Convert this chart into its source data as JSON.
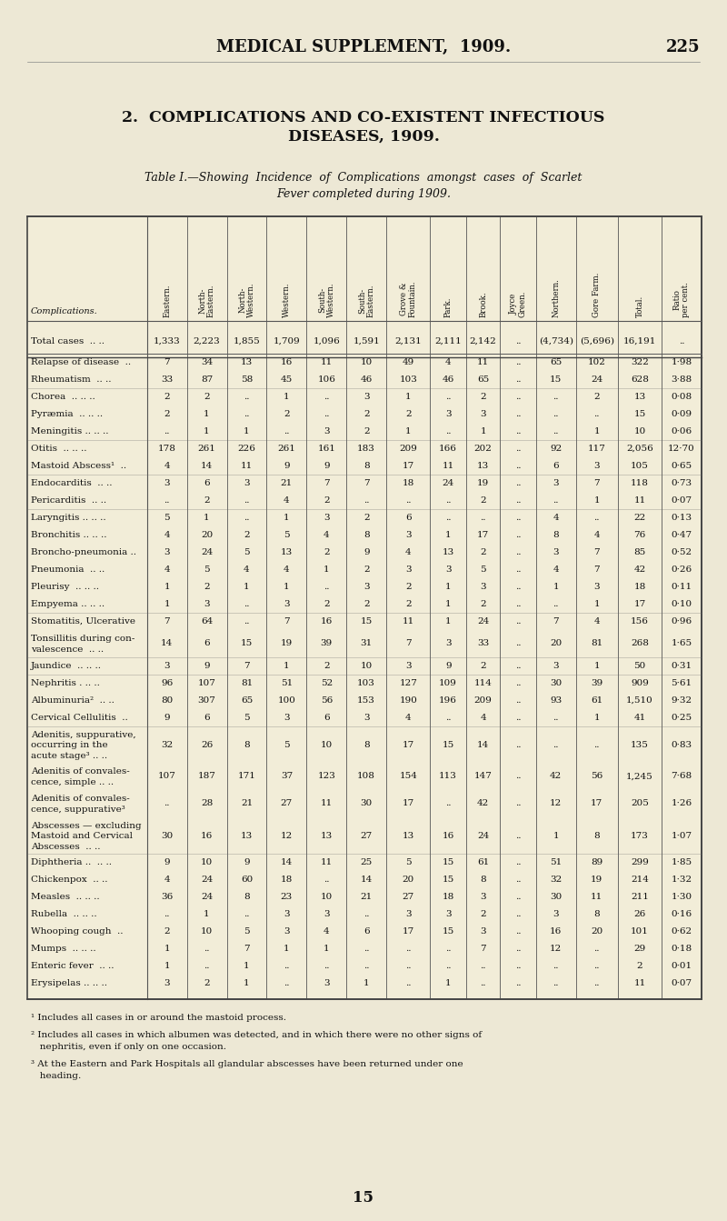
{
  "page_header": "MEDICAL SUPPLEMENT,  1909.",
  "page_number": "225",
  "section_title_line1": "2.  COMPLICATIONS AND CO-EXISTENT INFECTIOUS",
  "section_title_line2": "DISEASES, 1909.",
  "table_caption_line1": "Table I.—Showing  Incidence  of  Complications  amongst  cases  of  Scarlet",
  "table_caption_line2": "Fever completed during 1909.",
  "col_headers": [
    "Complications.",
    "Eastern.",
    "North-\nEastern.",
    "North-\nWestern.",
    "Western.",
    "South-\nWestern.",
    "South-\nEastern.",
    "Grove &\nFountain.",
    "Park.",
    "Brook.",
    "Joyce\nGreen.",
    "Northern.",
    "Gore Farm.",
    "Total.",
    "Ratio\nper cent."
  ],
  "rows": [
    [
      "Total cases  .. ..",
      "1,333",
      "2,223",
      "1,855",
      "1,709",
      "1,096",
      "1,591",
      "2,131",
      "2,111",
      "2,142",
      "..",
      "(4,734)",
      "(5,696)",
      "16,191",
      ".."
    ],
    [
      "Relapse of disease  ..",
      "7",
      "34",
      "13",
      "16",
      "11",
      "10",
      "49",
      "4",
      "11",
      "..",
      "65",
      "102",
      "322",
      "1·98"
    ],
    [
      "Rheumatism  .. ..",
      "33",
      "87",
      "58",
      "45",
      "106",
      "46",
      "103",
      "46",
      "65",
      "..",
      "15",
      "24",
      "628",
      "3·88"
    ],
    [
      "Chorea  .. .. ..",
      "2",
      "2",
      "..",
      "1",
      "..",
      "3",
      "1",
      "..",
      "2",
      "..",
      "..",
      "2",
      "13",
      "0·08"
    ],
    [
      "Pyræmia  .. .. ..",
      "2",
      "1",
      "..",
      "2",
      "..",
      "2",
      "2",
      "3",
      "3",
      "..",
      "..",
      "..",
      "15",
      "0·09"
    ],
    [
      "Meningitis .. .. ..",
      "..",
      "1",
      "1",
      "..",
      "3",
      "2",
      "1",
      "..",
      "1",
      "..",
      "..",
      "1",
      "10",
      "0·06"
    ],
    [
      "Otitis  .. .. ..",
      "178",
      "261",
      "226",
      "261",
      "161",
      "183",
      "209",
      "166",
      "202",
      "..",
      "92",
      "117",
      "2,056",
      "12·70"
    ],
    [
      "Mastoid Abscess¹  ..",
      "4",
      "14",
      "11",
      "9",
      "9",
      "8",
      "17",
      "11",
      "13",
      "..",
      "6",
      "3",
      "105",
      "0·65"
    ],
    [
      "Endocarditis  .. ..",
      "3",
      "6",
      "3",
      "21",
      "7",
      "7",
      "18",
      "24",
      "19",
      "..",
      "3",
      "7",
      "118",
      "0·73"
    ],
    [
      "Pericarditis  .. ..",
      "..",
      "2",
      "..",
      "4",
      "2",
      "..",
      "..",
      "..",
      "2",
      "..",
      "..",
      "1",
      "11",
      "0·07"
    ],
    [
      "Laryngitis .. .. ..",
      "5",
      "1",
      "..",
      "1",
      "3",
      "2",
      "6",
      "..",
      "..",
      "..",
      "4",
      "..",
      "22",
      "0·13"
    ],
    [
      "Bronchitis .. .. ..",
      "4",
      "20",
      "2",
      "5",
      "4",
      "8",
      "3",
      "1",
      "17",
      "..",
      "8",
      "4",
      "76",
      "0·47"
    ],
    [
      "Broncho-pneumonia ..",
      "3",
      "24",
      "5",
      "13",
      "2",
      "9",
      "4",
      "13",
      "2",
      "..",
      "3",
      "7",
      "85",
      "0·52"
    ],
    [
      "Pneumonia  .. ..",
      "4",
      "5",
      "4",
      "4",
      "1",
      "2",
      "3",
      "3",
      "5",
      "..",
      "4",
      "7",
      "42",
      "0·26"
    ],
    [
      "Pleurisy  .. .. ..",
      "1",
      "2",
      "1",
      "1",
      "..",
      "3",
      "2",
      "1",
      "3",
      "..",
      "1",
      "3",
      "18",
      "0·11"
    ],
    [
      "Empyema .. .. ..",
      "1",
      "3",
      "..",
      "3",
      "2",
      "2",
      "2",
      "1",
      "2",
      "..",
      "..",
      "1",
      "17",
      "0·10"
    ],
    [
      "Stomatitis, Ulcerative",
      "7",
      "64",
      "..",
      "7",
      "16",
      "15",
      "11",
      "1",
      "24",
      "..",
      "7",
      "4",
      "156",
      "0·96"
    ],
    [
      "Tonsillitis during con-\nvalescence  .. ..",
      "14",
      "6",
      "15",
      "19",
      "39",
      "31",
      "7",
      "3",
      "33",
      "..",
      "20",
      "81",
      "268",
      "1·65"
    ],
    [
      "Jaundice  .. .. ..",
      "3",
      "9",
      "7",
      "1",
      "2",
      "10",
      "3",
      "9",
      "2",
      "..",
      "3",
      "1",
      "50",
      "0·31"
    ],
    [
      "Nephritis . .. ..",
      "96",
      "107",
      "81",
      "51",
      "52",
      "103",
      "127",
      "109",
      "114",
      "..",
      "30",
      "39",
      "909",
      "5·61"
    ],
    [
      "Albuminuria²  .. ..",
      "80",
      "307",
      "65",
      "100",
      "56",
      "153",
      "190",
      "196",
      "209",
      "..",
      "93",
      "61",
      "1,510",
      "9·32"
    ],
    [
      "Cervical Cellulitis  ..",
      "9",
      "6",
      "5",
      "3",
      "6",
      "3",
      "4",
      "..",
      "4",
      "..",
      "..",
      "1",
      "41",
      "0·25"
    ],
    [
      "Adenitis, suppurative,\noccurring in the\nacute stage³ .. ..",
      "32",
      "26",
      "8",
      "5",
      "10",
      "8",
      "17",
      "15",
      "14",
      "..",
      "..",
      "..",
      "135",
      "0·83"
    ],
    [
      "Adenitis of convales-\ncence, simple .. ..",
      "107",
      "187",
      "171",
      "37",
      "123",
      "108",
      "154",
      "113",
      "147",
      "..",
      "42",
      "56",
      "1,245",
      "7·68"
    ],
    [
      "Adenitis of convales-\ncence, suppurative³",
      "..",
      "28",
      "21",
      "27",
      "11",
      "30",
      "17",
      "..",
      "42",
      "..",
      "12",
      "17",
      "205",
      "1·26"
    ],
    [
      "Abscesses — excluding\nMastoid and Cervical\nAbscesses  .. ..",
      "30",
      "16",
      "13",
      "12",
      "13",
      "27",
      "13",
      "16",
      "24",
      "..",
      "1",
      "8",
      "173",
      "1·07"
    ],
    [
      "Diphtheria ..  .. ..",
      "9",
      "10",
      "9",
      "14",
      "11",
      "25",
      "5",
      "15",
      "61",
      "..",
      "51",
      "89",
      "299",
      "1·85"
    ],
    [
      "Chickenpox  .. ..",
      "4",
      "24",
      "60",
      "18",
      "..",
      "14",
      "20",
      "15",
      "8",
      "..",
      "32",
      "19",
      "214",
      "1·32"
    ],
    [
      "Measles  .. .. ..",
      "36",
      "24",
      "8",
      "23",
      "10",
      "21",
      "27",
      "18",
      "3",
      "..",
      "30",
      "11",
      "211",
      "1·30"
    ],
    [
      "Rubella  .. .. ..",
      "..",
      "1",
      "..",
      "3",
      "3",
      "..",
      "3",
      "3",
      "2",
      "..",
      "3",
      "8",
      "26",
      "0·16"
    ],
    [
      "Whooping cough  ..",
      "2",
      "10",
      "5",
      "3",
      "4",
      "6",
      "17",
      "15",
      "3",
      "..",
      "16",
      "20",
      "101",
      "0·62"
    ],
    [
      "Mumps  .. .. ..",
      "1",
      "..",
      "7",
      "1",
      "1",
      "..",
      "..",
      "..",
      "7",
      "..",
      "12",
      "..",
      "29",
      "0·18"
    ],
    [
      "Enteric fever  .. ..",
      "1",
      "..",
      "1",
      "..",
      "..",
      "..",
      "..",
      "..",
      "..",
      "..",
      "..",
      "..",
      "2",
      "0·01"
    ],
    [
      "Erysipelas .. .. ..",
      "3",
      "2",
      "1",
      "..",
      "3",
      "1",
      "..",
      "1",
      "..",
      "..",
      "..",
      "..",
      "11",
      "0·07"
    ]
  ],
  "footnote1": "¹ Includes all cases in or around the mastoid process.",
  "footnote2": "² Includes all cases in which albumen was detected, and in which there were no other signs of",
  "footnote2b": "   nephritis, even if only on one occasion.",
  "footnote3": "³ At the Eastern and Park Hospitals all glandular abscesses have been returned under one",
  "footnote3b": "   heading.",
  "page_footer": "15",
  "bg_color": "#ede8d5",
  "table_bg": "#f2edd8",
  "text_color": "#111111"
}
